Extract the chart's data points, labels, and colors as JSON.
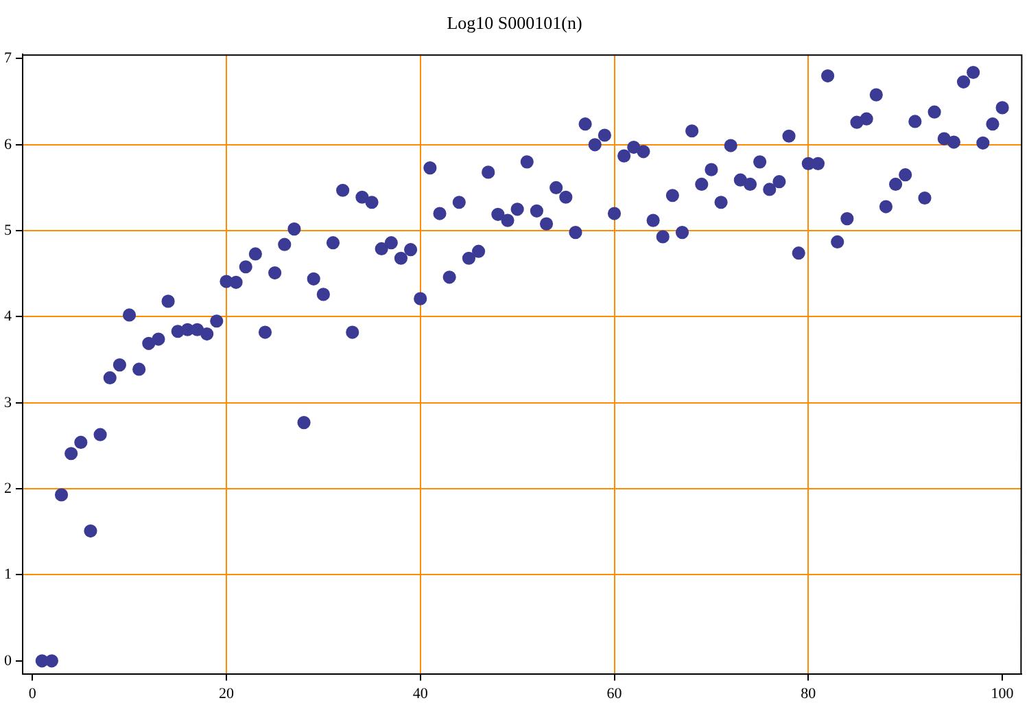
{
  "chart_data": {
    "type": "scatter",
    "title": "Log10 S000101(n)",
    "x": [
      1,
      2,
      3,
      4,
      5,
      6,
      7,
      8,
      9,
      10,
      11,
      12,
      13,
      14,
      15,
      16,
      17,
      18,
      19,
      20,
      21,
      22,
      23,
      24,
      25,
      26,
      27,
      28,
      29,
      30,
      31,
      32,
      33,
      34,
      35,
      36,
      37,
      38,
      39,
      40,
      41,
      42,
      43,
      44,
      45,
      46,
      47,
      48,
      49,
      50,
      51,
      52,
      53,
      54,
      55,
      56,
      57,
      58,
      59,
      60,
      61,
      62,
      63,
      64,
      65,
      66,
      67,
      68,
      69,
      70,
      71,
      72,
      73,
      74,
      75,
      76,
      77,
      78,
      79,
      80,
      81,
      82,
      83,
      84,
      85,
      86,
      87,
      88,
      89,
      90,
      91,
      92,
      93,
      94,
      95,
      96,
      97,
      98,
      99,
      100
    ],
    "values": [
      0,
      0,
      1.93,
      2.41,
      2.54,
      1.51,
      2.63,
      3.29,
      3.44,
      4.02,
      3.39,
      3.69,
      3.74,
      4.18,
      3.83,
      3.85,
      3.85,
      3.8,
      3.95,
      4.41,
      4.4,
      4.58,
      4.73,
      3.82,
      4.51,
      4.84,
      5.02,
      2.77,
      4.44,
      4.26,
      4.86,
      5.47,
      3.82,
      5.39,
      5.33,
      4.79,
      4.86,
      4.68,
      4.78,
      4.21,
      5.73,
      5.2,
      4.46,
      5.33,
      4.68,
      4.76,
      5.68,
      5.19,
      5.12,
      5.25,
      5.8,
      5.23,
      5.08,
      5.5,
      5.39,
      4.98,
      6.24,
      6,
      6.11,
      5.2,
      5.87,
      5.97,
      5.92,
      5.12,
      4.93,
      5.41,
      4.98,
      6.16,
      5.54,
      5.71,
      5.33,
      5.99,
      5.59,
      5.54,
      5.8,
      5.48,
      5.57,
      6.1,
      4.74,
      5.78,
      5.78,
      6.8,
      4.87,
      5.14,
      6.26,
      6.3,
      6.58,
      5.28,
      5.54,
      5.65,
      6.27,
      5.38,
      6.38,
      6.07,
      6.03,
      6.73,
      6.84,
      6.02,
      6.24,
      6.43
    ],
    "color": "#3b3b96",
    "marker": "circle",
    "xlim": [
      -1,
      102
    ],
    "ylim": [
      -0.15,
      7.05
    ],
    "xticks": [
      0,
      20,
      40,
      60,
      80,
      100
    ],
    "yticks": [
      0,
      1,
      2,
      3,
      4,
      5,
      6,
      7
    ],
    "grid": true
  }
}
